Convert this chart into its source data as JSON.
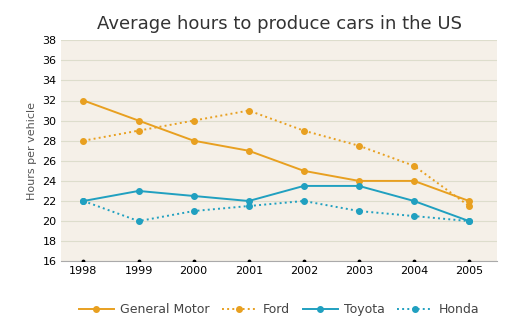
{
  "title": "Average hours to produce cars in the US",
  "ylabel": "Hours per vehicle",
  "years": [
    1998,
    1999,
    2000,
    2001,
    2002,
    2003,
    2004,
    2005
  ],
  "series": {
    "General Motor": [
      32,
      30,
      28,
      27,
      25,
      24,
      24,
      22
    ],
    "Ford": [
      28,
      29,
      30,
      31,
      29,
      27.5,
      25.5,
      21.5
    ],
    "Toyota": [
      22,
      23,
      22.5,
      22,
      23.5,
      23.5,
      22,
      20
    ],
    "Honda": [
      22,
      20,
      21,
      21.5,
      22,
      21,
      20.5,
      20
    ]
  },
  "line_styles": {
    "General Motor": "-",
    "Ford": ":",
    "Toyota": "-",
    "Honda": ":"
  },
  "colors": {
    "General Motor": "#E8A020",
    "Ford": "#E8A020",
    "Toyota": "#20A0C0",
    "Honda": "#20A0C0"
  },
  "marker": "o",
  "ylim": [
    16,
    38
  ],
  "yticks": [
    16,
    18,
    20,
    22,
    24,
    26,
    28,
    30,
    32,
    34,
    36,
    38
  ],
  "figure_bg": "#FFFFFF",
  "plot_bg": "#F5F0E8",
  "grid_color": "#DDDDCC",
  "title_fontsize": 13,
  "axis_label_fontsize": 8,
  "tick_fontsize": 8,
  "legend_fontsize": 9,
  "marker_size": 4,
  "linewidth": 1.4
}
